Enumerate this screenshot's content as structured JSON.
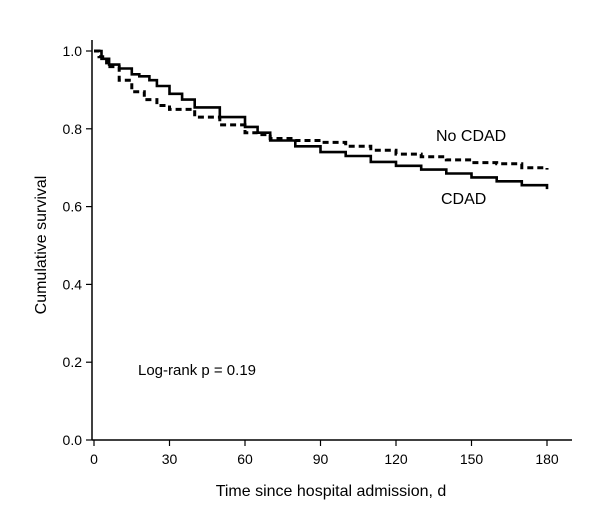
{
  "chart_data": {
    "type": "line",
    "title": "",
    "xlabel": "Time since hospital admission, d",
    "ylabel": "Cumulative survival",
    "xlim": [
      0,
      180
    ],
    "ylim": [
      0,
      1.0
    ],
    "x_ticks": [
      0,
      30,
      60,
      90,
      120,
      150,
      180
    ],
    "y_ticks": [
      0.0,
      0.2,
      0.4,
      0.6,
      0.8,
      1.0
    ],
    "x_tick_labels": [
      "0",
      "30",
      "60",
      "90",
      "120",
      "150",
      "180"
    ],
    "y_tick_labels": [
      "0.0",
      "0.2",
      "0.4",
      "0.6",
      "0.8",
      "1.0"
    ],
    "grid": false,
    "legend": "none",
    "series": [
      {
        "name": "No CDAD",
        "style": "dashed",
        "color": "#000000",
        "points": [
          [
            0,
            1.0
          ],
          [
            2,
            0.985
          ],
          [
            5,
            0.96
          ],
          [
            10,
            0.925
          ],
          [
            15,
            0.895
          ],
          [
            20,
            0.875
          ],
          [
            25,
            0.86
          ],
          [
            30,
            0.85
          ],
          [
            40,
            0.83
          ],
          [
            50,
            0.81
          ],
          [
            60,
            0.79
          ],
          [
            65,
            0.785
          ],
          [
            70,
            0.775
          ],
          [
            80,
            0.77
          ],
          [
            90,
            0.765
          ],
          [
            100,
            0.755
          ],
          [
            110,
            0.745
          ],
          [
            120,
            0.735
          ],
          [
            130,
            0.728
          ],
          [
            140,
            0.72
          ],
          [
            150,
            0.713
          ],
          [
            160,
            0.71
          ],
          [
            170,
            0.7
          ],
          [
            180,
            0.695
          ]
        ]
      },
      {
        "name": "CDAD",
        "style": "solid",
        "color": "#000000",
        "points": [
          [
            0,
            1.0
          ],
          [
            3,
            0.98
          ],
          [
            6,
            0.965
          ],
          [
            10,
            0.955
          ],
          [
            15,
            0.94
          ],
          [
            18,
            0.935
          ],
          [
            22,
            0.925
          ],
          [
            25,
            0.91
          ],
          [
            30,
            0.89
          ],
          [
            35,
            0.875
          ],
          [
            40,
            0.855
          ],
          [
            50,
            0.83
          ],
          [
            60,
            0.805
          ],
          [
            65,
            0.79
          ],
          [
            70,
            0.77
          ],
          [
            80,
            0.755
          ],
          [
            90,
            0.74
          ],
          [
            100,
            0.73
          ],
          [
            110,
            0.715
          ],
          [
            120,
            0.705
          ],
          [
            130,
            0.695
          ],
          [
            140,
            0.685
          ],
          [
            150,
            0.675
          ],
          [
            160,
            0.665
          ],
          [
            170,
            0.655
          ],
          [
            180,
            0.645
          ]
        ]
      }
    ],
    "series_labels": [
      "No CDAD",
      "CDAD"
    ],
    "annotation": "Log-rank p = 0.19"
  }
}
